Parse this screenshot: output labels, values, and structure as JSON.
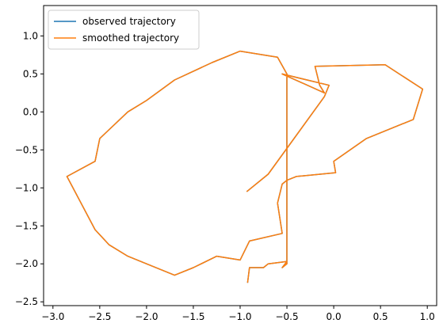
{
  "chart_data": {
    "type": "line",
    "title": "",
    "xlabel": "",
    "ylabel": "",
    "xlim": [
      -3.1,
      1.1
    ],
    "ylim": [
      -2.55,
      1.4
    ],
    "xticks": [
      -3.0,
      -2.5,
      -2.0,
      -1.5,
      -1.0,
      -0.5,
      0.0,
      0.5,
      1.0
    ],
    "xtick_labels": [
      "−3.0",
      "−2.5",
      "−2.0",
      "−1.5",
      "−1.0",
      "−0.5",
      "0.0",
      "0.5",
      "1.0"
    ],
    "yticks": [
      -2.5,
      -2.0,
      -1.5,
      -1.0,
      -0.5,
      0.0,
      0.5,
      1.0
    ],
    "ytick_labels": [
      "−2.5",
      "−2.0",
      "−1.5",
      "−1.0",
      "−0.5",
      "0.0",
      "0.5",
      "1.0"
    ],
    "grid": false,
    "legend_position": "top-left",
    "series": [
      {
        "name": "observed trajectory",
        "color": "#1f77b4",
        "x": [
          -0.93,
          -0.7,
          -0.1,
          -0.05,
          -0.55,
          -0.1,
          -0.15,
          -0.2,
          0.55,
          0.95,
          0.85,
          0.35,
          0.0,
          0.02,
          -0.4,
          -0.5,
          -0.55,
          -0.6,
          -0.55,
          -0.9,
          -1.0,
          -1.25,
          -1.5,
          -1.7,
          -2.0,
          -2.2,
          -2.4,
          -2.55,
          -2.85,
          -2.55,
          -2.5,
          -2.2,
          -2.0,
          -1.7,
          -1.3,
          -1.0,
          -0.6,
          -0.5,
          -0.5,
          -0.55,
          -0.5,
          -0.7,
          -0.75,
          -0.9,
          -0.92
        ],
        "y": [
          -1.05,
          -0.82,
          0.2,
          0.35,
          0.5,
          0.25,
          0.35,
          0.6,
          0.62,
          0.3,
          -0.1,
          -0.35,
          -0.65,
          -0.8,
          -0.85,
          -0.9,
          -0.95,
          -1.2,
          -1.6,
          -1.7,
          -1.95,
          -1.9,
          -2.05,
          -2.15,
          -2.0,
          -1.9,
          -1.75,
          -1.55,
          -0.85,
          -0.65,
          -0.35,
          0.0,
          0.15,
          0.42,
          0.65,
          0.8,
          0.72,
          0.5,
          -2.0,
          -2.05,
          -1.97,
          -2.0,
          -2.05,
          -2.05,
          -2.25
        ]
      },
      {
        "name": "smoothed trajectory",
        "color": "#ff7f0e",
        "x": [
          -0.93,
          -0.7,
          -0.1,
          -0.05,
          -0.55,
          -0.1,
          -0.15,
          -0.2,
          0.55,
          0.95,
          0.85,
          0.35,
          0.0,
          0.02,
          -0.4,
          -0.5,
          -0.55,
          -0.6,
          -0.55,
          -0.9,
          -1.0,
          -1.25,
          -1.5,
          -1.7,
          -2.0,
          -2.2,
          -2.4,
          -2.55,
          -2.85,
          -2.55,
          -2.5,
          -2.2,
          -2.0,
          -1.7,
          -1.3,
          -1.0,
          -0.6,
          -0.5,
          -0.5,
          -0.55,
          -0.5,
          -0.7,
          -0.75,
          -0.9,
          -0.92
        ],
        "y": [
          -1.05,
          -0.82,
          0.2,
          0.35,
          0.5,
          0.25,
          0.35,
          0.6,
          0.62,
          0.3,
          -0.1,
          -0.35,
          -0.65,
          -0.8,
          -0.85,
          -0.9,
          -0.95,
          -1.2,
          -1.6,
          -1.7,
          -1.95,
          -1.9,
          -2.05,
          -2.15,
          -2.0,
          -1.9,
          -1.75,
          -1.55,
          -0.85,
          -0.65,
          -0.35,
          0.0,
          0.15,
          0.42,
          0.65,
          0.8,
          0.72,
          0.5,
          -2.0,
          -2.05,
          -1.97,
          -2.0,
          -2.05,
          -2.05,
          -2.25
        ]
      }
    ]
  }
}
